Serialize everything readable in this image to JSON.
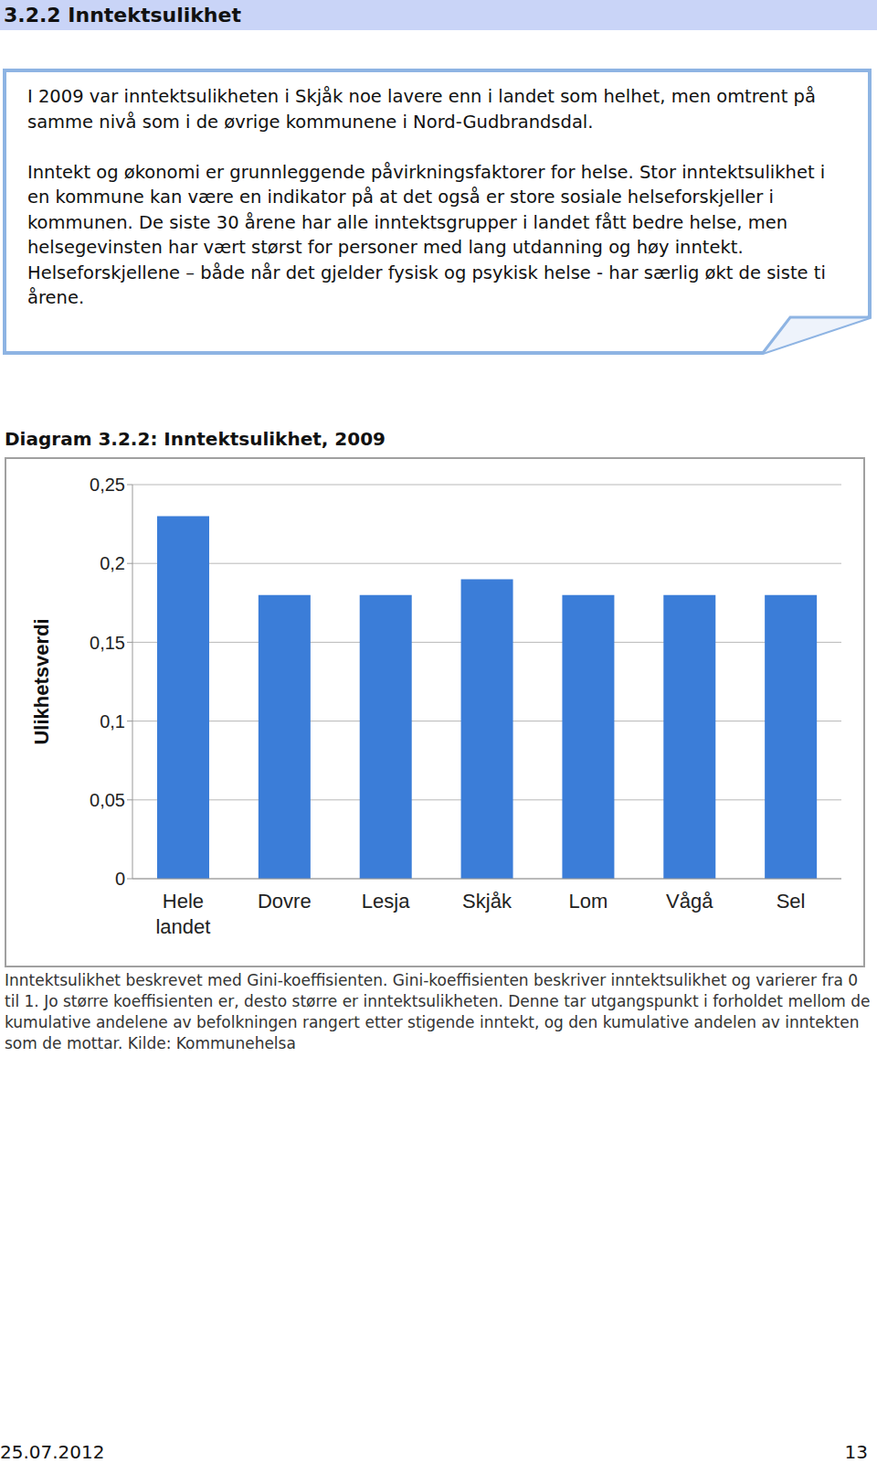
{
  "heading": "3.2.2 Inntektsulikhet",
  "box": {
    "paragraphs": [
      "I 2009 var inntektsulikheten i Skjåk noe lavere enn i landet som helhet, men omtrent på samme nivå som i de øvrige kommunene i Nord-Gudbrandsdal.",
      "Inntekt og økonomi er grunnleggende påvirkningsfaktorer for helse. Stor inntektsulikhet i en kommune kan være en indikator på at det også er store sosiale helseforskjeller i kommunen. De siste 30 årene har alle inntektsgrupper i landet fått bedre helse, men helsegevinsten har vært størst for personer med lang utdanning og høy inntekt. Helseforskjellene – både når det gjelder fysisk og psykisk helse - har særlig økt de siste ti årene."
    ]
  },
  "diagram_title": "Diagram 3.2.2: Inntektsulikhet, 2009",
  "chart_data": {
    "type": "bar",
    "y_label": "Ulikhetsverdi",
    "categories": [
      "Hele landet",
      "Dovre",
      "Lesja",
      "Skjåk",
      "Lom",
      "Vågå",
      "Sel"
    ],
    "values": [
      0.23,
      0.18,
      0.18,
      0.19,
      0.18,
      0.18,
      0.18
    ],
    "color": "#3b7dd8",
    "ylim": [
      0,
      0.25
    ],
    "yticks": [
      0,
      {
        "value": 0.05,
        "label": "0,05"
      },
      {
        "value": 0.1,
        "label": "0,1"
      },
      {
        "value": 0.15,
        "label": "0,15"
      },
      {
        "value": 0.2,
        "label": "0,2"
      },
      {
        "value": 0.25,
        "label": "0,25"
      }
    ],
    "grid": true
  },
  "caption": "Inntektsulikhet beskrevet med Gini-koeffisienten. Gini-koeffisienten beskriver inntektsulikhet og varierer fra 0 til 1. Jo større koeffisienten er, desto større er inntektsulikheten. Denne tar utgangspunkt i forholdet mellom de kumulative andelene av befolkningen rangert etter stigende inntekt, og den kumulative andelen av inntekten som de mottar.  Kilde: Kommunehelsa",
  "footer": {
    "date": "25.07.2012",
    "page": "13"
  }
}
